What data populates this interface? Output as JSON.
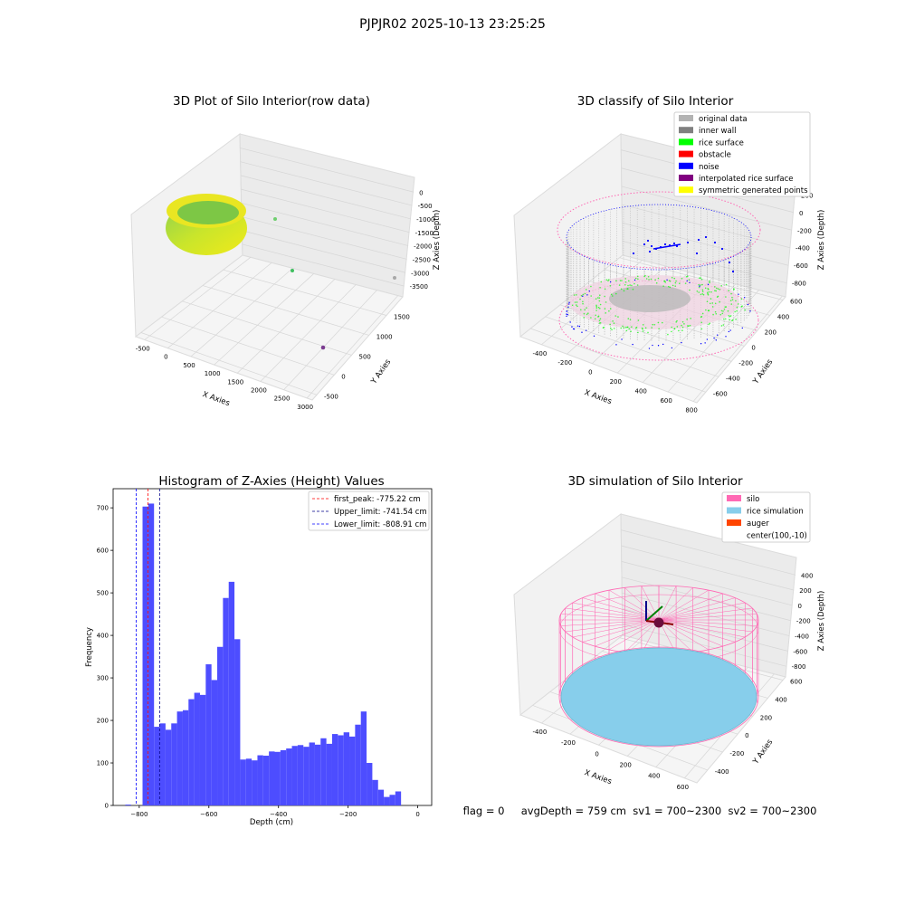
{
  "suptitle": "PJPJR02 2025-10-13 23:25:25",
  "colors": {
    "original_data": "#b3b3b3",
    "inner_wall": "#808080",
    "rice_surface": "#00ff00",
    "obstacle": "#ff0000",
    "noise": "#0000ff",
    "interpolated_rice_surface": "#800080",
    "symmetric_generated_points": "#ffff00",
    "silo": "#ff69b4",
    "rice_simulation": "#87ceeb",
    "auger": "#ff4500",
    "hist_bar": "#4d4dff"
  },
  "panel1": {
    "title": "3D Plot of Silo Interior(row data)",
    "xlabel": "X Axies",
    "ylabel": "Y Axies",
    "zlabel": "Z Axies (Depth)",
    "xticks": [
      "-500",
      "0",
      "500",
      "1000",
      "1500",
      "2000",
      "2500",
      "3000"
    ],
    "yticks": [
      "-500",
      "0",
      "500",
      "1000",
      "1500"
    ],
    "zticks": [
      "0",
      "-500",
      "-1000",
      "-1500",
      "-2000",
      "-2500",
      "-3000",
      "-3500"
    ]
  },
  "panel2": {
    "title": "3D classify of Silo Interior",
    "xlabel": "X Axies",
    "ylabel": "Y Axies",
    "zlabel": "Z Axies (Depth)",
    "xticks": [
      "-400",
      "-200",
      "0",
      "200",
      "400",
      "600",
      "800"
    ],
    "yticks": [
      "-600",
      "-400",
      "-200",
      "0",
      "200",
      "400",
      "600"
    ],
    "zticks": [
      "200",
      "0",
      "-200",
      "-400",
      "-600",
      "-800"
    ],
    "legend": [
      {
        "label": "original data",
        "color": "#b3b3b3"
      },
      {
        "label": "inner wall",
        "color": "#808080"
      },
      {
        "label": "rice surface",
        "color": "#00ff00"
      },
      {
        "label": "obstacle",
        "color": "#ff0000"
      },
      {
        "label": "noise",
        "color": "#0000ff"
      },
      {
        "label": "interpolated rice surface",
        "color": "#800080"
      },
      {
        "label": "symmetric generated points",
        "color": "#ffff00"
      }
    ]
  },
  "panel4": {
    "title": "3D simulation of Silo Interior",
    "xlabel": "X Axies",
    "ylabel": "Y Axies",
    "zlabel": "Z Axies (Depth)",
    "xticks": [
      "-400",
      "-200",
      "0",
      "200",
      "400",
      "600"
    ],
    "yticks": [
      "-400",
      "-200",
      "0",
      "200",
      "400",
      "600"
    ],
    "zticks": [
      "400",
      "200",
      "0",
      "-200",
      "-400",
      "-600",
      "-800"
    ],
    "legend": [
      {
        "label": "silo",
        "color": "#ff69b4"
      },
      {
        "label": "rice simulation",
        "color": "#87ceeb"
      },
      {
        "label": "auger",
        "color": "#ff4500"
      },
      {
        "label": "center(100,-10)",
        "color": ""
      }
    ]
  },
  "status_line": "flag = 0     avgDepth = 759 cm  sv1 = 700~2300  sv2 = 700~2300",
  "chart_data": {
    "type": "bar",
    "title": "Histogram of Z-Axies (Height) Values",
    "xlabel": "Depth (cm)",
    "ylabel": "Frequency",
    "xlim": [
      -875,
      40
    ],
    "ylim": [
      0,
      745
    ],
    "xticks": [
      -800,
      -600,
      -400,
      -200,
      0
    ],
    "yticks": [
      0,
      100,
      200,
      300,
      400,
      500,
      600,
      700
    ],
    "bin_width": 16.5,
    "bin_starts": [
      -840,
      -823.5,
      -807,
      -790.5,
      -774,
      -757.5,
      -741,
      -724.5,
      -708,
      -691.5,
      -675,
      -658.5,
      -642,
      -625.5,
      -609,
      -592.5,
      -576,
      -559.5,
      -543,
      -526.5,
      -510,
      -493.5,
      -477,
      -460.5,
      -444,
      -427.5,
      -411,
      -394.5,
      -378,
      -361.5,
      -345,
      -328.5,
      -312,
      -295.5,
      -279,
      -262.5,
      -246,
      -229.5,
      -213,
      -196.5,
      -180,
      -163.5,
      -147,
      -130.5,
      -114,
      -97.5,
      -81,
      -64.5,
      -48,
      -31.5,
      -15
    ],
    "values": [
      2,
      0,
      0,
      703,
      710,
      185,
      193,
      178,
      193,
      221,
      224,
      250,
      265,
      260,
      332,
      295,
      373,
      488,
      526,
      391,
      108,
      110,
      106,
      118,
      117,
      127,
      126,
      130,
      134,
      140,
      142,
      138,
      148,
      143,
      158,
      145,
      168,
      165,
      172,
      162,
      190,
      221,
      100,
      60,
      37,
      20,
      25,
      33,
      0,
      0,
      0
    ],
    "vlines": [
      {
        "label": "first_peak: -775.22 cm",
        "x": -775.22,
        "color": "#ff0000"
      },
      {
        "label": "Upper_limit: -741.54 cm",
        "x": -741.54,
        "color": "#00008b"
      },
      {
        "label": "Lower_limit: -808.91 cm",
        "x": -808.91,
        "color": "#0000ff"
      }
    ]
  }
}
